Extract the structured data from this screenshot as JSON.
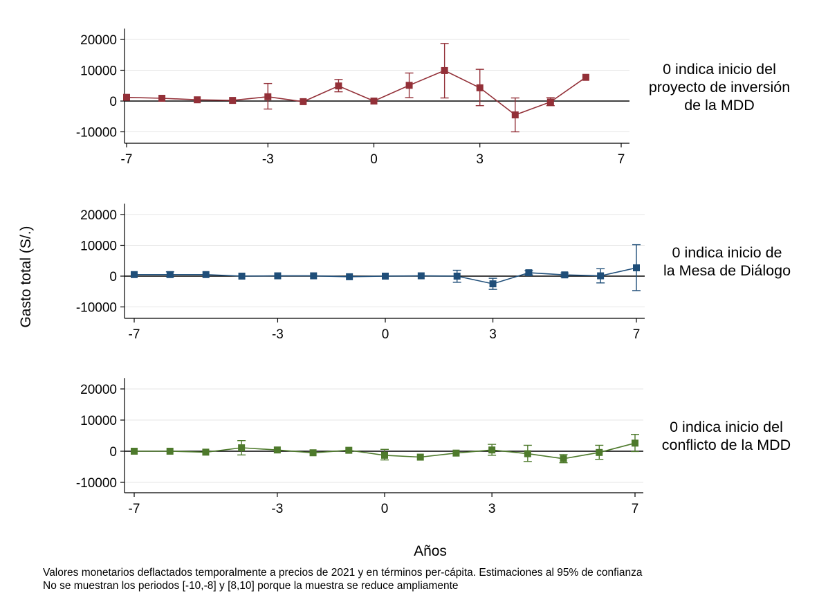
{
  "chart_data": {
    "type": "line",
    "ylabel": "Gasto total (S/.)",
    "xlabel": "Años",
    "panels": [
      {
        "label_lines": [
          "0 indica inicio del",
          "proyecto de inversión",
          "de la MDD"
        ],
        "color": "#933038",
        "xlim": [
          -7,
          7
        ],
        "xticks": [
          -7,
          -3,
          0,
          3,
          7
        ],
        "yticks": [
          20000,
          10000,
          0,
          -10000
        ],
        "ylim": [
          -13000,
          23500
        ],
        "x": [
          -7,
          -6,
          -5,
          -4,
          -3,
          -2,
          -1,
          0,
          1,
          2,
          3,
          4,
          5,
          6
        ],
        "y": [
          1200,
          900,
          400,
          200,
          1400,
          -200,
          4900,
          0,
          5100,
          9900,
          4300,
          -4500,
          -300,
          7700
        ],
        "ci_low": [
          null,
          null,
          null,
          null,
          -2600,
          null,
          3000,
          null,
          1100,
          1000,
          -1500,
          -10000,
          -1500,
          null
        ],
        "ci_high": [
          null,
          null,
          null,
          null,
          5700,
          null,
          7000,
          null,
          9100,
          18700,
          10300,
          1000,
          1100,
          null
        ]
      },
      {
        "label_lines": [
          "0 indica inicio de",
          "la Mesa de Diálogo"
        ],
        "color": "#1f4e79",
        "xlim": [
          -7,
          7
        ],
        "xticks": [
          -7,
          -3,
          0,
          3,
          7
        ],
        "yticks": [
          20000,
          10000,
          0,
          -10000
        ],
        "ylim": [
          -13000,
          23500
        ],
        "x": [
          -7,
          -6,
          -5,
          -4,
          -3,
          -2,
          -1,
          0,
          1,
          2,
          3,
          4,
          5,
          6,
          7
        ],
        "y": [
          500,
          500,
          500,
          0,
          100,
          100,
          -200,
          0,
          100,
          0,
          -2500,
          1100,
          400,
          100,
          2700
        ],
        "ci_low": [
          null,
          -200,
          null,
          null,
          null,
          null,
          null,
          null,
          null,
          -2000,
          -4300,
          400,
          -200,
          -2200,
          -4700
        ],
        "ci_high": [
          null,
          1400,
          null,
          null,
          null,
          null,
          null,
          null,
          null,
          1900,
          -700,
          1800,
          1000,
          2400,
          10200
        ]
      },
      {
        "label_lines": [
          "0 indica inicio del",
          "conflicto de la MDD"
        ],
        "color": "#4e7a2c",
        "xlim": [
          -7,
          7
        ],
        "xticks": [
          -7,
          -3,
          0,
          3,
          7
        ],
        "yticks": [
          20000,
          10000,
          0,
          -10000
        ],
        "ylim": [
          -13000,
          23500
        ],
        "x": [
          -7,
          -6,
          -5,
          -4,
          -3,
          -2,
          -1,
          0,
          1,
          2,
          3,
          4,
          5,
          6,
          7
        ],
        "y": [
          0,
          0,
          -300,
          1100,
          400,
          -500,
          300,
          -1300,
          -1900,
          -600,
          400,
          -800,
          -2400,
          -400,
          2600
        ],
        "ci_low": [
          null,
          null,
          null,
          -1200,
          null,
          null,
          null,
          -2800,
          null,
          null,
          -1300,
          -3300,
          -3700,
          -2600,
          -100
        ],
        "ci_high": [
          null,
          null,
          null,
          3400,
          null,
          null,
          null,
          600,
          null,
          null,
          2200,
          1900,
          -1100,
          1900,
          5400
        ]
      }
    ]
  },
  "notes": [
    "Valores monetarios deflactados temporalmente a precios de 2021 y en términos per-cápita. Estimaciones al 95% de confianza",
    "No se muestran los periodos [-10,-8] y [8,10] porque la muestra se reduce ampliamente"
  ]
}
